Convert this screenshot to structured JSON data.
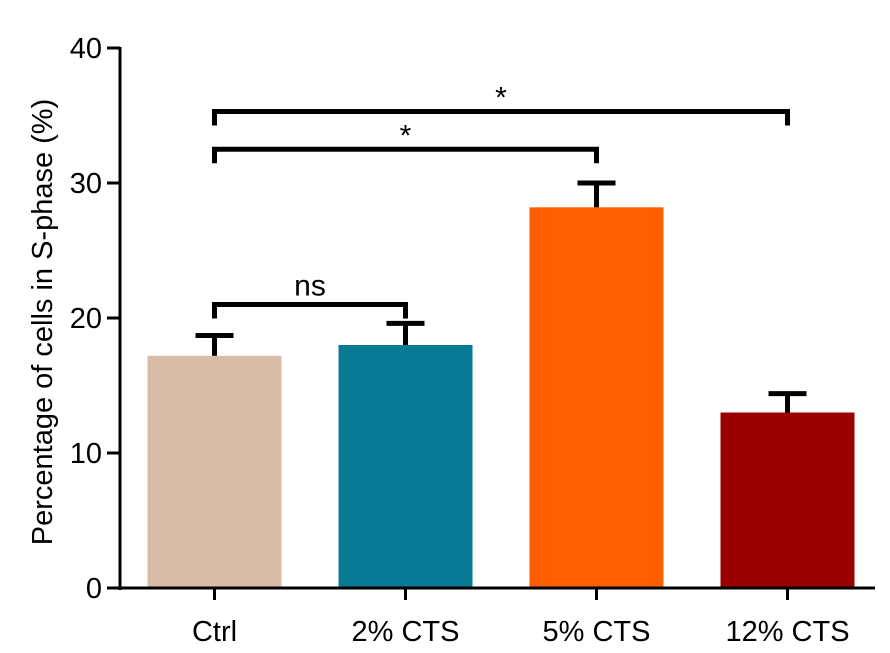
{
  "chart_data": {
    "type": "bar",
    "title": "",
    "xlabel": "",
    "ylabel": "Percentage of cells in S-phase (%)",
    "ylim": [
      0,
      40
    ],
    "yticks": [
      0,
      10,
      20,
      30,
      40
    ],
    "categories": [
      "Ctrl",
      "2% CTS",
      "5% CTS",
      "12% CTS"
    ],
    "values": [
      17.2,
      18.0,
      28.2,
      13.0
    ],
    "errors": [
      1.5,
      1.6,
      1.8,
      1.4
    ],
    "colors": [
      "#d8bca8",
      "#077a96",
      "#ff5f00",
      "#990000"
    ],
    "grid": false,
    "significance": [
      {
        "from": 0,
        "to": 1,
        "label": "ns",
        "y": 21.0
      },
      {
        "from": 0,
        "to": 2,
        "label": "*",
        "y": 32.5
      },
      {
        "from": 0,
        "to": 3,
        "label": "*",
        "y": 35.3
      }
    ]
  }
}
